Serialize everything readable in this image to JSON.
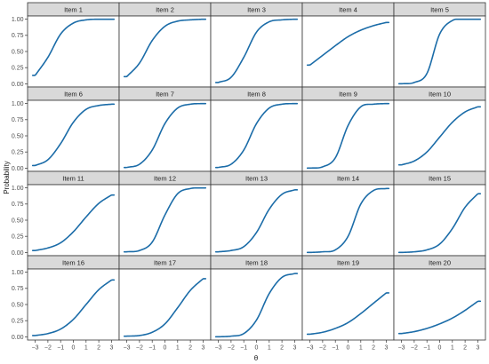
{
  "chart_data": {
    "type": "line",
    "facet_layout": {
      "rows": 4,
      "cols": 5
    },
    "xlabel": "θ",
    "ylabel": "Probability",
    "xlim": [
      -3.6,
      3.6
    ],
    "ylim": [
      -0.05,
      1.05
    ],
    "x_ticks": [
      -3,
      -2,
      -1,
      0,
      1,
      2,
      3
    ],
    "x_tick_labels": [
      "−3",
      "−2",
      "−1",
      "0",
      "1",
      "2",
      "3"
    ],
    "y_ticks": [
      0,
      0.25,
      0.5,
      0.75,
      1
    ],
    "y_tick_labels": [
      "0.00",
      "0.25",
      "0.50",
      "0.75",
      "1.00"
    ],
    "x_range": [
      -3.2,
      3.2
    ],
    "grid": false,
    "line_color": "#1b6ca8",
    "series": [
      {
        "name": "Item 1",
        "x": [
          -3,
          -2,
          -1,
          0,
          1,
          2,
          3
        ],
        "values": [
          0.13,
          0.41,
          0.77,
          0.94,
          0.99,
          1.0,
          1.0
        ]
      },
      {
        "name": "Item 2",
        "x": [
          -3,
          -2,
          -1,
          0,
          1,
          2,
          3
        ],
        "values": [
          0.11,
          0.32,
          0.67,
          0.89,
          0.97,
          0.99,
          1.0
        ]
      },
      {
        "name": "Item 3",
        "x": [
          -3,
          -2,
          -1,
          0,
          1,
          2,
          3
        ],
        "values": [
          0.02,
          0.1,
          0.41,
          0.8,
          0.96,
          0.99,
          1.0
        ]
      },
      {
        "name": "Item 4",
        "x": [
          -3,
          -2,
          -1,
          0,
          1,
          2,
          3
        ],
        "values": [
          0.29,
          0.44,
          0.59,
          0.73,
          0.83,
          0.9,
          0.95
        ]
      },
      {
        "name": "Item 5",
        "x": [
          -3,
          -2,
          -1,
          0,
          1,
          2,
          3
        ],
        "values": [
          0.0,
          0.02,
          0.16,
          0.77,
          0.98,
          1.0,
          1.0
        ]
      },
      {
        "name": "Item 6",
        "x": [
          -3,
          -2,
          -1,
          0,
          1,
          2,
          3
        ],
        "values": [
          0.04,
          0.13,
          0.38,
          0.71,
          0.91,
          0.97,
          0.99
        ]
      },
      {
        "name": "Item 7",
        "x": [
          -3,
          -2,
          -1,
          0,
          1,
          2,
          3
        ],
        "values": [
          0.01,
          0.06,
          0.28,
          0.69,
          0.93,
          0.99,
          1.0
        ]
      },
      {
        "name": "Item 8",
        "x": [
          -3,
          -2,
          -1,
          0,
          1,
          2,
          3
        ],
        "values": [
          0.01,
          0.06,
          0.28,
          0.69,
          0.93,
          0.99,
          1.0
        ]
      },
      {
        "name": "Item 9",
        "x": [
          -3,
          -2,
          -1,
          0,
          1,
          2,
          3
        ],
        "values": [
          0.0,
          0.02,
          0.16,
          0.66,
          0.95,
          0.99,
          1.0
        ]
      },
      {
        "name": "Item 10",
        "x": [
          -3,
          -2,
          -1,
          0,
          1,
          2,
          3
        ],
        "values": [
          0.05,
          0.11,
          0.25,
          0.48,
          0.71,
          0.87,
          0.95
        ]
      },
      {
        "name": "Item 11",
        "x": [
          -3,
          -2,
          -1,
          0,
          1,
          2,
          3
        ],
        "values": [
          0.03,
          0.07,
          0.15,
          0.32,
          0.55,
          0.76,
          0.89
        ]
      },
      {
        "name": "Item 12",
        "x": [
          -3,
          -2,
          -1,
          0,
          1,
          2,
          3
        ],
        "values": [
          0.01,
          0.03,
          0.16,
          0.58,
          0.91,
          0.99,
          1.0
        ]
      },
      {
        "name": "Item 13",
        "x": [
          -3,
          -2,
          -1,
          0,
          1,
          2,
          3
        ],
        "values": [
          0.01,
          0.03,
          0.09,
          0.31,
          0.67,
          0.9,
          0.97
        ]
      },
      {
        "name": "Item 14",
        "x": [
          -3,
          -2,
          -1,
          0,
          1,
          2,
          3
        ],
        "values": [
          0.0,
          0.01,
          0.04,
          0.25,
          0.75,
          0.96,
          0.99
        ]
      },
      {
        "name": "Item 15",
        "x": [
          -3,
          -2,
          -1,
          0,
          1,
          2,
          3
        ],
        "values": [
          0.0,
          0.01,
          0.04,
          0.13,
          0.37,
          0.7,
          0.91
        ]
      },
      {
        "name": "Item 16",
        "x": [
          -3,
          -2,
          -1,
          0,
          1,
          2,
          3
        ],
        "values": [
          0.02,
          0.05,
          0.12,
          0.27,
          0.5,
          0.73,
          0.88
        ]
      },
      {
        "name": "Item 17",
        "x": [
          -3,
          -2,
          -1,
          0,
          1,
          2,
          3
        ],
        "values": [
          0.01,
          0.02,
          0.07,
          0.2,
          0.45,
          0.72,
          0.9
        ]
      },
      {
        "name": "Item 18",
        "x": [
          -3,
          -2,
          -1,
          0,
          1,
          2,
          3
        ],
        "values": [
          0.0,
          0.01,
          0.05,
          0.26,
          0.67,
          0.92,
          0.98
        ]
      },
      {
        "name": "Item 19",
        "x": [
          -3,
          -2,
          -1,
          0,
          1,
          2,
          3
        ],
        "values": [
          0.04,
          0.07,
          0.13,
          0.22,
          0.36,
          0.52,
          0.68
        ]
      },
      {
        "name": "Item 20",
        "x": [
          -3,
          -2,
          -1,
          0,
          1,
          2,
          3
        ],
        "values": [
          0.05,
          0.08,
          0.13,
          0.2,
          0.29,
          0.41,
          0.55
        ]
      }
    ]
  }
}
